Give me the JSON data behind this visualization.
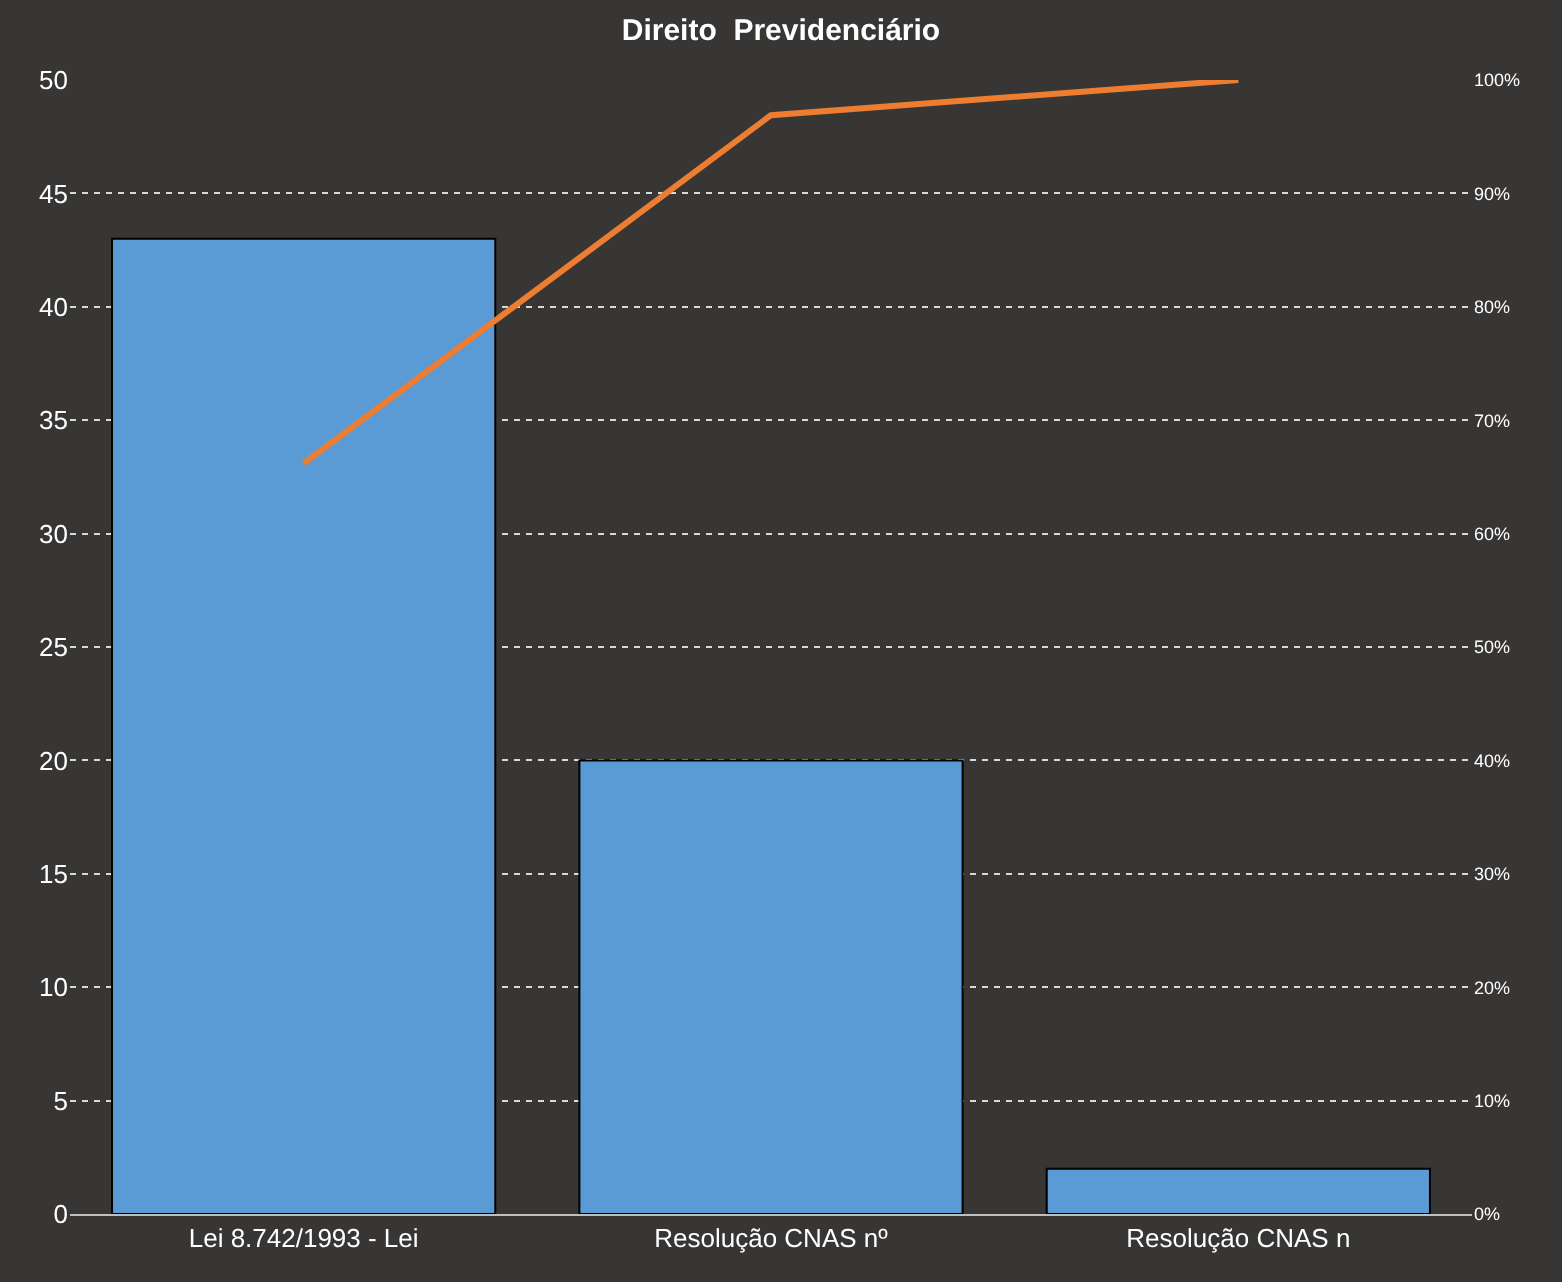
{
  "chart_data": {
    "type": "bar",
    "title": "Direito  Previdenciário",
    "categories": [
      "Lei 8.742/1993 - Lei",
      "Resolução CNAS nº",
      "Resolução CNAS n"
    ],
    "series": [
      {
        "color": "#5b9bd5",
        "values": [
          43,
          20,
          2
        ]
      },
      {
        "type": "line",
        "axis": "y2",
        "color": "#ed7d31",
        "values": [
          66.2,
          96.9,
          100
        ]
      }
    ],
    "ylim": [
      0,
      50
    ],
    "yticks": [
      0,
      5,
      10,
      15,
      20,
      25,
      30,
      35,
      40,
      45,
      50
    ],
    "y2lim": [
      0,
      100
    ],
    "y2ticks": [
      {
        "value": 0,
        "label": "0%"
      },
      {
        "value": 10,
        "label": "10%"
      },
      {
        "value": 20,
        "label": "20%"
      },
      {
        "value": 30,
        "label": "30%"
      },
      {
        "value": 40,
        "label": "40%"
      },
      {
        "value": 50,
        "label": "50%"
      },
      {
        "value": 60,
        "label": "60%"
      },
      {
        "value": 70,
        "label": "70%"
      },
      {
        "value": 80,
        "label": "80%"
      },
      {
        "value": 90,
        "label": "90%"
      },
      {
        "value": 100,
        "label": "100%"
      }
    ],
    "grid": "y",
    "marker": "none",
    "line_style": "solid"
  }
}
